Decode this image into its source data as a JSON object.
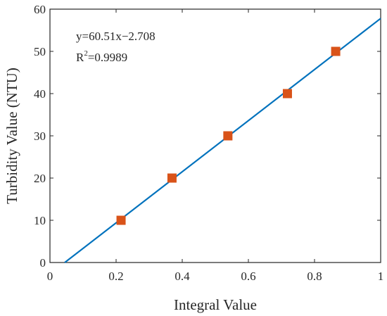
{
  "chart_data": {
    "type": "scatter",
    "title": "",
    "xlabel": "Integral Value",
    "ylabel": "Turbidity Value (NTU)",
    "xlim": [
      0,
      1
    ],
    "ylim": [
      0,
      60
    ],
    "xticks": [
      0,
      0.2,
      0.4,
      0.6,
      0.8,
      1
    ],
    "xtick_labels": [
      "0",
      "0.2",
      "0.4",
      "0.6",
      "0.8",
      "1"
    ],
    "yticks": [
      0,
      10,
      20,
      30,
      40,
      50,
      60
    ],
    "ytick_labels": [
      "0",
      "10",
      "20",
      "30",
      "40",
      "50",
      "60"
    ],
    "grid": false,
    "series": [
      {
        "type": "scatter",
        "marker": "square",
        "color": "#d95319",
        "x": [
          0.215,
          0.369,
          0.538,
          0.718,
          0.864
        ],
        "y": [
          10,
          20,
          30,
          40,
          50
        ]
      },
      {
        "type": "line",
        "color": "#0072bd",
        "slope": 60.51,
        "intercept": -2.708
      }
    ],
    "annotation": {
      "equation": "y=60.51x−2.708",
      "r2_prefix": "R",
      "r2_sup": "2",
      "r2_value": "=0.9989"
    }
  }
}
